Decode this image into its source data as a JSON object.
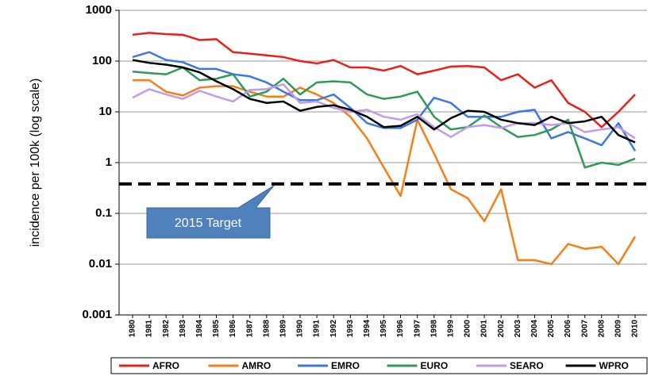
{
  "chart_data": {
    "type": "line",
    "y_label": "incidence per 100k  (log scale)",
    "log_scale": true,
    "grid": true,
    "legend": "bottom",
    "categories": [
      "1980",
      "1981",
      "1982",
      "1983",
      "1984",
      "1985",
      "1986",
      "1987",
      "1988",
      "1989",
      "1990",
      "1991",
      "1992",
      "1993",
      "1994",
      "1995",
      "1996",
      "1997",
      "1998",
      "1999",
      "2000",
      "2001",
      "2002",
      "2003",
      "2004",
      "2005",
      "2006",
      "2007",
      "2008",
      "2009",
      "2010"
    ],
    "ylim": [
      0.001,
      1000
    ],
    "yticks": [
      0.001,
      0.01,
      0.1,
      1,
      10,
      100,
      1000
    ],
    "target_line": {
      "value": 0.38,
      "label": "2015 Target"
    },
    "series": [
      {
        "name": "AFRO",
        "color": "#e8201a",
        "values": [
          330,
          360,
          340,
          330,
          260,
          270,
          150,
          140,
          130,
          120,
          100,
          90,
          105,
          75,
          75,
          65,
          80,
          55,
          65,
          78,
          80,
          75,
          42,
          55,
          30,
          42,
          15,
          10,
          5,
          10,
          22
        ]
      },
      {
        "name": "AMRO",
        "color": "#f57f17",
        "values": [
          42,
          42,
          25,
          21,
          30,
          32,
          32,
          25,
          20,
          20,
          30,
          22,
          15,
          8,
          3,
          0.8,
          0.22,
          7,
          1.5,
          0.3,
          0.2,
          0.07,
          0.3,
          0.012,
          0.012,
          0.01,
          0.025,
          0.02,
          0.022,
          0.01,
          0.035
        ]
      },
      {
        "name": "EMRO",
        "color": "#3a78e6",
        "values": [
          120,
          150,
          105,
          95,
          70,
          70,
          55,
          50,
          38,
          25,
          17,
          17,
          22,
          12,
          6,
          4.8,
          4.8,
          7,
          19,
          15,
          8,
          8,
          8,
          10,
          11,
          3,
          4,
          3,
          2.2,
          6,
          1.7
        ]
      },
      {
        "name": "EURO",
        "color": "#2e9a5a",
        "values": [
          62,
          58,
          55,
          75,
          42,
          45,
          55,
          20,
          25,
          45,
          22,
          38,
          40,
          38,
          22,
          18,
          20,
          25,
          8,
          4.5,
          5,
          8.5,
          5,
          3.2,
          3.5,
          4.5,
          7,
          0.8,
          1.0,
          0.9,
          1.2
        ]
      },
      {
        "name": "SEARO",
        "color": "#c39be6",
        "values": [
          19,
          28,
          22,
          18,
          26,
          20,
          16,
          27,
          28,
          35,
          15,
          16,
          12,
          10,
          11,
          8,
          7,
          9,
          5,
          3.2,
          5,
          5.5,
          4.8,
          6,
          6,
          5.5,
          6,
          4,
          4.5,
          5,
          3
        ]
      },
      {
        "name": "WPRO",
        "color": "#000000",
        "values": [
          105,
          92,
          85,
          75,
          60,
          40,
          28,
          18,
          15,
          16,
          10.5,
          12.5,
          13.5,
          11,
          8,
          5,
          5.3,
          8,
          4.5,
          7.5,
          10.5,
          10,
          7,
          6,
          5.5,
          8,
          6,
          6.5,
          8,
          3.5,
          2.5
        ]
      }
    ]
  }
}
